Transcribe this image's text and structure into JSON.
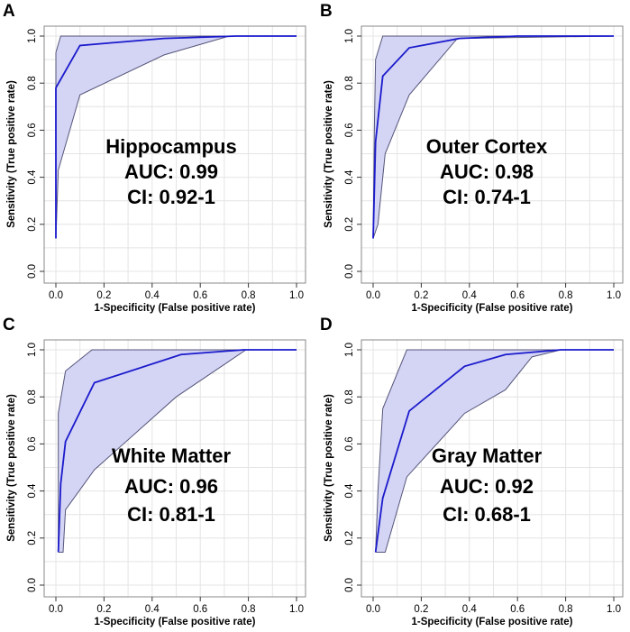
{
  "chart_data": [
    {
      "panel": "A",
      "type": "line",
      "title": "Hippocampus",
      "annotations": [
        "Hippocampus",
        "AUC: 0.99",
        "CI: 0.92-1"
      ],
      "xlabel": "1-Specificity (False positive rate)",
      "ylabel": "Sensitivity (True positive rate)",
      "xlim": [
        0,
        1
      ],
      "ylim": [
        0,
        1
      ],
      "xticks": [
        "0.0",
        "0.2",
        "0.4",
        "0.6",
        "0.8",
        "1.0"
      ],
      "yticks": [
        "0.0",
        "0.2",
        "0.4",
        "0.6",
        "0.8",
        "1.0"
      ],
      "grid": true,
      "roc": {
        "x": [
          0,
          0,
          0.1,
          0.45,
          0.75,
          1.0
        ],
        "y": [
          0.14,
          0.78,
          0.96,
          0.99,
          1.0,
          1.0
        ]
      },
      "ci_upper": {
        "x": [
          0,
          0,
          0.02,
          1.0
        ],
        "y": [
          0.14,
          0.93,
          1.0,
          1.0
        ]
      },
      "ci_lower": {
        "x": [
          0,
          0.01,
          0.1,
          0.45,
          0.72,
          1.0
        ],
        "y": [
          0.14,
          0.43,
          0.75,
          0.92,
          1.0,
          1.0
        ]
      },
      "colors": {
        "line": "#1a1acc",
        "band": "#d4d4f5",
        "band_edge": "#55557a"
      }
    },
    {
      "panel": "B",
      "type": "line",
      "title": "Outer Cortex",
      "annotations": [
        "Outer Cortex",
        "AUC: 0.98",
        "CI: 0.74-1"
      ],
      "xlabel": "1-Specificity (False positive rate)",
      "ylabel": "Sensitivity (True positive rate)",
      "xlim": [
        0,
        1
      ],
      "ylim": [
        0,
        1
      ],
      "xticks": [
        "0.0",
        "0.2",
        "0.4",
        "0.6",
        "0.8",
        "1.0"
      ],
      "yticks": [
        "0.0",
        "0.2",
        "0.4",
        "0.6",
        "0.8",
        "1.0"
      ],
      "grid": true,
      "roc": {
        "x": [
          0,
          0.01,
          0.04,
          0.15,
          0.36,
          0.6,
          1.0
        ],
        "y": [
          0.14,
          0.55,
          0.83,
          0.95,
          0.99,
          1.0,
          1.0
        ]
      },
      "ci_upper": {
        "x": [
          0,
          0.005,
          0.01,
          0.04,
          1.0
        ],
        "y": [
          0.14,
          0.6,
          0.9,
          1.0,
          1.0
        ]
      },
      "ci_lower": {
        "x": [
          0,
          0.02,
          0.05,
          0.15,
          0.35,
          1.0
        ],
        "y": [
          0.14,
          0.2,
          0.5,
          0.75,
          0.99,
          1.0
        ]
      },
      "colors": {
        "line": "#1a1acc",
        "band": "#d4d4f5",
        "band_edge": "#55557a"
      }
    },
    {
      "panel": "C",
      "type": "line",
      "title": "White Matter",
      "annotations": [
        "White Matter",
        "AUC: 0.96",
        "CI: 0.81-1"
      ],
      "xlabel": "1-Specificity (False positive rate)",
      "ylabel": "Sensitivity (True positive rate)",
      "xlim": [
        0,
        1
      ],
      "ylim": [
        0,
        1
      ],
      "xticks": [
        "0.0",
        "0.2",
        "0.4",
        "0.6",
        "0.8",
        "1.0"
      ],
      "yticks": [
        "0.0",
        "0.2",
        "0.4",
        "0.6",
        "0.8",
        "1.0"
      ],
      "grid": true,
      "roc": {
        "x": [
          0.01,
          0.02,
          0.04,
          0.16,
          0.52,
          0.78,
          1.0
        ],
        "y": [
          0.14,
          0.43,
          0.61,
          0.86,
          0.98,
          1.0,
          1.0
        ]
      },
      "ci_upper": {
        "x": [
          0.01,
          0.01,
          0.04,
          0.15,
          1.0
        ],
        "y": [
          0.14,
          0.73,
          0.91,
          1.0,
          1.0
        ]
      },
      "ci_lower": {
        "x": [
          0.01,
          0.03,
          0.04,
          0.16,
          0.5,
          0.79,
          1.0
        ],
        "y": [
          0.14,
          0.14,
          0.32,
          0.49,
          0.8,
          1.0,
          1.0
        ]
      },
      "colors": {
        "line": "#1a1acc",
        "band": "#d4d4f5",
        "band_edge": "#55557a"
      }
    },
    {
      "panel": "D",
      "type": "line",
      "title": "Gray Matter",
      "annotations": [
        "Gray Matter",
        "AUC: 0.92",
        "CI: 0.68-1"
      ],
      "xlabel": "1-Specificity (False positive rate)",
      "ylabel": "Sensitivity (True positive rate)",
      "xlim": [
        0,
        1
      ],
      "ylim": [
        0,
        1
      ],
      "xticks": [
        "0.0",
        "0.2",
        "0.4",
        "0.6",
        "0.8",
        "1.0"
      ],
      "yticks": [
        "0.0",
        "0.2",
        "0.4",
        "0.6",
        "0.8",
        "1.0"
      ],
      "grid": true,
      "roc": {
        "x": [
          0.01,
          0.04,
          0.15,
          0.38,
          0.55,
          0.78,
          1.0
        ],
        "y": [
          0.14,
          0.37,
          0.74,
          0.93,
          0.98,
          1.0,
          1.0
        ]
      },
      "ci_upper": {
        "x": [
          0.01,
          0.02,
          0.04,
          0.14,
          1.0
        ],
        "y": [
          0.14,
          0.4,
          0.75,
          1.0,
          1.0
        ]
      },
      "ci_lower": {
        "x": [
          0.01,
          0.05,
          0.14,
          0.38,
          0.55,
          0.66,
          0.78,
          1.0
        ],
        "y": [
          0.14,
          0.14,
          0.46,
          0.73,
          0.83,
          0.97,
          1.0,
          1.0
        ]
      },
      "colors": {
        "line": "#1a1acc",
        "band": "#d4d4f5",
        "band_edge": "#55557a"
      }
    }
  ]
}
